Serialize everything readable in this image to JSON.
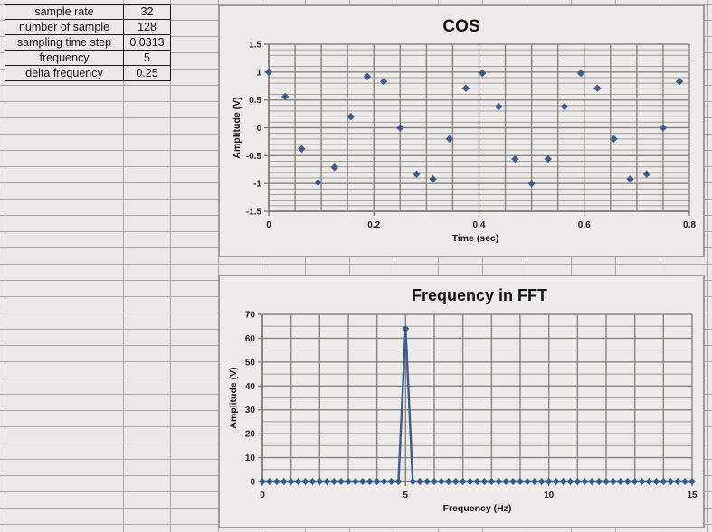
{
  "params_table": {
    "rows": [
      {
        "label": "sample rate",
        "value": "32"
      },
      {
        "label": "number of sample",
        "value": "128"
      },
      {
        "label": "sampling time step",
        "value": "0.0313"
      },
      {
        "label": "frequency",
        "value": "5"
      },
      {
        "label": "delta frequency",
        "value": "0.25"
      }
    ]
  },
  "colors": {
    "series": "#3e5c8a",
    "grid_major": "#8a837e",
    "grid_minor": "#a29d98",
    "frame_bg": "#ecebe8",
    "sheet_bg": "#ebe9e6"
  },
  "chart_data": [
    {
      "type": "scatter",
      "title": "COS",
      "xlabel": "Time (sec)",
      "ylabel": "Amplitude (V)",
      "xlim": [
        0,
        0.8
      ],
      "ylim": [
        -1.5,
        1.5
      ],
      "xticks": [
        0,
        0.2,
        0.4,
        0.6,
        0.8
      ],
      "xtick_labels": [
        "0",
        "0.2",
        "0.4",
        "0.6",
        "0.8"
      ],
      "yticks": [
        -1.5,
        -1,
        -0.5,
        0,
        0.5,
        1,
        1.5
      ],
      "ytick_labels": [
        "-1.5",
        "-1",
        "-0.5",
        "0",
        "0.5",
        "1",
        "1.5"
      ],
      "grid": true,
      "x_grid_step": 0.05,
      "y_grid_step": 0.1,
      "legend": "none",
      "series": [
        {
          "name": "cos",
          "marker": "diamond",
          "x": [
            0,
            0.03125,
            0.0625,
            0.09375,
            0.125,
            0.15625,
            0.1875,
            0.21875,
            0.25,
            0.28125,
            0.3125,
            0.34375,
            0.375,
            0.40625,
            0.4375,
            0.46875,
            0.5,
            0.53125,
            0.5625,
            0.59375,
            0.625,
            0.65625,
            0.6875,
            0.71875,
            0.75,
            0.78125
          ],
          "y": [
            1,
            0.56,
            -0.38,
            -0.98,
            -0.71,
            0.2,
            0.92,
            0.83,
            0,
            -0.83,
            -0.92,
            -0.2,
            0.71,
            0.98,
            0.38,
            -0.56,
            -1,
            -0.56,
            0.38,
            0.98,
            0.71,
            -0.2,
            -0.92,
            -0.83,
            0,
            0.83
          ]
        }
      ]
    },
    {
      "type": "line",
      "title": "Frequency in FFT",
      "xlabel": "Frequency (Hz)",
      "ylabel": "Amplitude (V)",
      "xlim": [
        0,
        15
      ],
      "ylim": [
        0,
        70
      ],
      "xticks": [
        0,
        5,
        10,
        15
      ],
      "xtick_labels": [
        "0",
        "5",
        "10",
        "15"
      ],
      "yticks": [
        0,
        10,
        20,
        30,
        40,
        50,
        60,
        70
      ],
      "ytick_labels": [
        "0",
        "10",
        "20",
        "30",
        "40",
        "50",
        "60",
        "70"
      ],
      "grid": true,
      "x_grid_step": 1,
      "y_grid_step": 5,
      "legend": "none",
      "series": [
        {
          "name": "fft",
          "marker": "diamond",
          "x_start": 0,
          "x_step": 0.25,
          "y": [
            0,
            0,
            0,
            0,
            0,
            0,
            0,
            0,
            0,
            0,
            0,
            0,
            0,
            0,
            0,
            0,
            0,
            0,
            0,
            0,
            64,
            0,
            0,
            0,
            0,
            0,
            0,
            0,
            0,
            0,
            0,
            0,
            0,
            0,
            0,
            0,
            0,
            0,
            0,
            0,
            0,
            0,
            0,
            0,
            0,
            0,
            0,
            0,
            0,
            0,
            0,
            0,
            0,
            0,
            0,
            0,
            0,
            0,
            0,
            0,
            0
          ]
        }
      ]
    }
  ]
}
